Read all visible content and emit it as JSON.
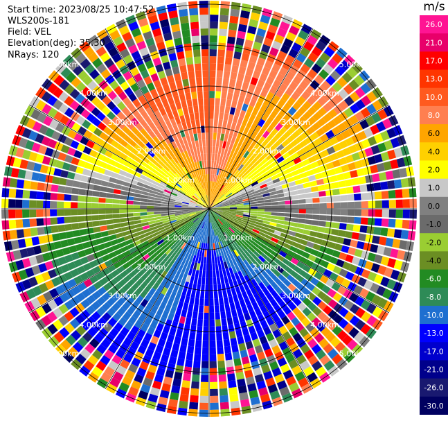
{
  "info": {
    "start_time": "Start time: 2023/08/25 10:47:52",
    "instrument": "WLS200s-181",
    "field": "Field: VEL",
    "elevation": "Elevation(deg): 35.30",
    "nrays": "NRays: 120"
  },
  "chart_data": {
    "type": "ppi",
    "field": "VEL",
    "units": "m/s",
    "nrays": 120,
    "range_rings": [
      "1.00km",
      "2.00km",
      "3.00km",
      "4.00km",
      "5.00km"
    ],
    "colorbar": {
      "title": "m/s",
      "ticks": [
        "26.0",
        "21.0",
        "17.0",
        "13.0",
        "10.0",
        "8.0",
        "6.0",
        "4.0",
        "2.0",
        "1.0",
        "0.0",
        "-1.0",
        "-2.0",
        "-4.0",
        "-6.0",
        "-8.0",
        "-10.0",
        "-13.0",
        "-17.0",
        "-21.0",
        "-26.0",
        "-30.0"
      ],
      "colors": [
        "#ff1493",
        "#e8006a",
        "#ff0000",
        "#ff3500",
        "#ff5a1f",
        "#ff7f50",
        "#ffa500",
        "#ffd000",
        "#ffff00",
        "#c8c8c8",
        "#808080",
        "#6b6b6b",
        "#9acd32",
        "#6b8e23",
        "#228b22",
        "#2e8b57",
        "#1e6fd0",
        "#0000ff",
        "#0000cd",
        "#00008b",
        "#191970",
        "#000060"
      ]
    }
  }
}
